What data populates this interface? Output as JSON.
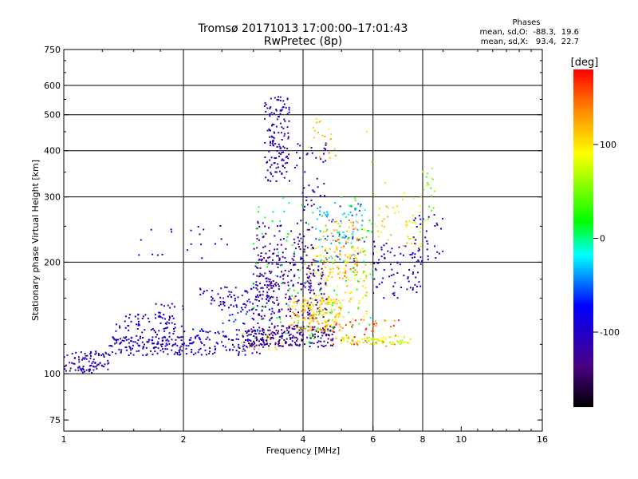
{
  "chart_data": {
    "type": "scatter",
    "title": "Tromsø 20171013 17:00:00–17:01:43",
    "subtitle": "RwPretec (8p)",
    "xlabel": "Frequency [MHz]",
    "ylabel": "Stationary phase Virtual Height [km]",
    "x_scale": "log2",
    "y_scale": "log",
    "xlim": [
      1,
      16
    ],
    "ylim": [
      70,
      750
    ],
    "x_ticks": [
      1,
      2,
      4,
      6,
      8,
      10,
      16
    ],
    "y_ticks": [
      75,
      100,
      200,
      300,
      400,
      500,
      600,
      750
    ],
    "x_gridlines": [
      2,
      4,
      6,
      8
    ],
    "y_gridlines": [
      100,
      200,
      300,
      400,
      500,
      600
    ],
    "grid": true,
    "phases": {
      "title": "Phases",
      "line1": "mean, sd,O:  -88.3,  19.6",
      "line2": "mean, sd,X:   93.4,  22.7"
    },
    "colorbar": {
      "label": "[deg]",
      "range": [
        -180,
        180
      ],
      "ticks": [
        100,
        0,
        -100
      ]
    },
    "clusters": [
      {
        "x": [
          1.0,
          1.3
        ],
        "y": [
          100,
          115
        ],
        "n": 90,
        "phase": -110
      },
      {
        "x": [
          1.3,
          2.0
        ],
        "y": [
          112,
          126
        ],
        "n": 140,
        "phase": -105
      },
      {
        "x": [
          1.35,
          1.9
        ],
        "y": [
          126,
          148
        ],
        "n": 60,
        "phase": -100
      },
      {
        "x": [
          1.7,
          2.05
        ],
        "y": [
          120,
          155
        ],
        "n": 25,
        "phase": -95
      },
      {
        "x": [
          2.0,
          3.2
        ],
        "y": [
          112,
          132
        ],
        "n": 130,
        "phase": -95
      },
      {
        "x": [
          2.2,
          3.4
        ],
        "y": [
          150,
          172
        ],
        "n": 70,
        "phase": -100
      },
      {
        "x": [
          2.5,
          3.4
        ],
        "y": [
          135,
          160
        ],
        "n": 40,
        "phase": -80
      },
      {
        "x": [
          2.8,
          3.6
        ],
        "y": [
          115,
          128
        ],
        "n": 25,
        "phase": 105
      },
      {
        "x": [
          2.9,
          4.8
        ],
        "y": [
          118,
          135
        ],
        "n": 220,
        "phase": -130
      },
      {
        "x": [
          3.0,
          4.6
        ],
        "y": [
          140,
          210
        ],
        "n": 200,
        "phase": -120
      },
      {
        "x": [
          3.0,
          4.3
        ],
        "y": [
          170,
          260
        ],
        "n": 120,
        "phase": -115
      },
      {
        "x": [
          3.2,
          3.7
        ],
        "y": [
          330,
          560
        ],
        "n": 140,
        "phase": -110
      },
      {
        "x": [
          3.8,
          4.6
        ],
        "y": [
          270,
          420
        ],
        "n": 40,
        "phase": -105
      },
      {
        "x": [
          3.7,
          5.0
        ],
        "y": [
          130,
          160
        ],
        "n": 150,
        "phase": 115
      },
      {
        "x": [
          4.0,
          5.8
        ],
        "y": [
          140,
          220
        ],
        "n": 120,
        "phase": 100
      },
      {
        "x": [
          4.5,
          5.6
        ],
        "y": [
          180,
          260
        ],
        "n": 80,
        "phase": 130
      },
      {
        "x": [
          4.3,
          5.8
        ],
        "y": [
          200,
          290
        ],
        "n": 80,
        "phase": -40
      },
      {
        "x": [
          5.0,
          7.5
        ],
        "y": [
          120,
          126
        ],
        "n": 70,
        "phase": 85
      },
      {
        "x": [
          4.5,
          7.0
        ],
        "y": [
          118,
          140
        ],
        "n": 50,
        "phase": 150
      },
      {
        "x": [
          6.0,
          8.0
        ],
        "y": [
          160,
          230
        ],
        "n": 80,
        "phase": -105
      },
      {
        "x": [
          6.0,
          8.0
        ],
        "y": [
          220,
          310
        ],
        "n": 45,
        "phase": 100
      },
      {
        "x": [
          7.5,
          9.0
        ],
        "y": [
          200,
          270
        ],
        "n": 35,
        "phase": -90
      },
      {
        "x": [
          7.8,
          8.6
        ],
        "y": [
          240,
          360
        ],
        "n": 20,
        "phase": 60
      },
      {
        "x": [
          4.1,
          4.9
        ],
        "y": [
          380,
          490
        ],
        "n": 20,
        "phase": 115
      },
      {
        "x": [
          5.6,
          6.6
        ],
        "y": [
          120,
          600
        ],
        "n": 12,
        "phase": 80
      },
      {
        "x": [
          1.5,
          2.6
        ],
        "y": [
          205,
          255
        ],
        "n": 20,
        "phase": -100
      },
      {
        "x": [
          3.0,
          6.0
        ],
        "y": [
          120,
          300
        ],
        "n": 120,
        "phase": 20
      }
    ]
  }
}
